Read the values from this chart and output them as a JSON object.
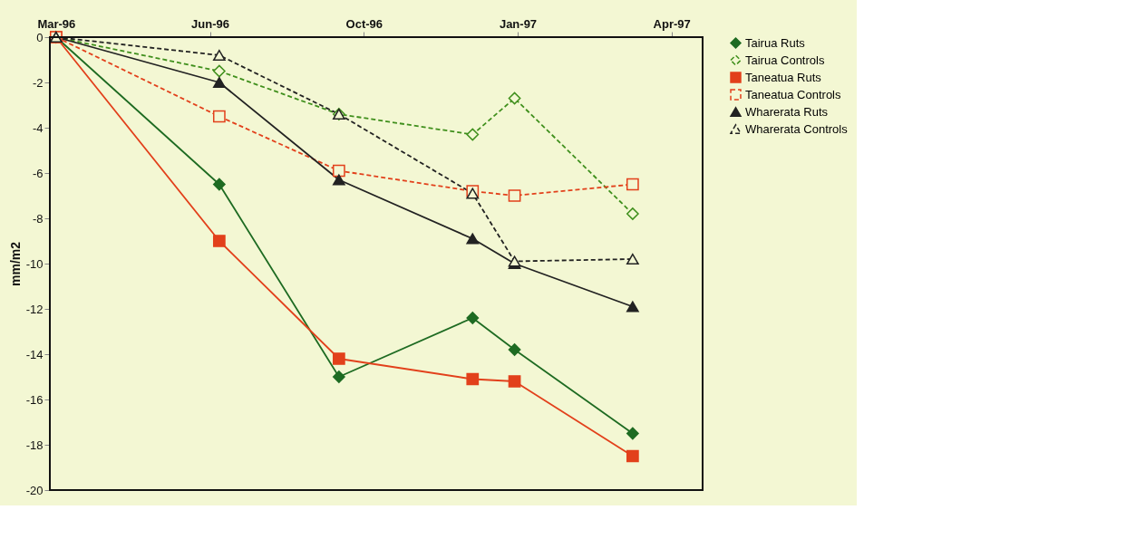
{
  "chart_data": {
    "type": "line",
    "ylabel": "mm/m2",
    "x": [
      "1996-03-20",
      "1996-07-03",
      "1996-09-18",
      "1996-12-13",
      "1997-01-09",
      "1997-03-26"
    ],
    "xlim": [
      "1996-03-16",
      "1997-05-10"
    ],
    "xticks": [
      {
        "value": "1996-03-20",
        "label": "Mar-96"
      },
      {
        "value": "1996-06-27",
        "label": "Jun-96"
      },
      {
        "value": "1996-10-04",
        "label": "Oct-96"
      },
      {
        "value": "1997-01-11",
        "label": "Jan-97"
      },
      {
        "value": "1997-04-20",
        "label": "Apr-97"
      }
    ],
    "ylim": [
      -20,
      0
    ],
    "yticks": [
      0,
      -2,
      -4,
      -6,
      -8,
      -10,
      -12,
      -14,
      -16,
      -18,
      -20
    ],
    "grid": false,
    "legend": "right",
    "series": [
      {
        "name": "Tairua Ruts",
        "color": "#1e6b22",
        "marker": "diamond",
        "line_style": "solid",
        "values": [
          0,
          -6.5,
          -15.0,
          -12.4,
          -13.8,
          -17.5
        ]
      },
      {
        "name": "Tairua Controls",
        "color": "#3f8f1c",
        "marker": "diamond",
        "line_style": "dashed",
        "values": [
          0,
          -1.5,
          -3.4,
          -4.3,
          -2.7,
          -7.8
        ]
      },
      {
        "name": "Taneatua Ruts",
        "color": "#e2401b",
        "marker": "square",
        "line_style": "solid",
        "values": [
          0,
          -9.0,
          -14.2,
          -15.1,
          -15.2,
          -18.5
        ]
      },
      {
        "name": "Taneatua Controls",
        "color": "#e2401b",
        "marker": "square",
        "line_style": "dashed",
        "values": [
          0,
          -3.5,
          -5.9,
          -6.8,
          -7.0,
          -6.5
        ]
      },
      {
        "name": "Wharerata Ruts",
        "color": "#222222",
        "marker": "triangle",
        "line_style": "solid",
        "values": [
          0,
          -2.0,
          -6.3,
          -8.9,
          -10.0,
          -11.9
        ]
      },
      {
        "name": "Wharerata Controls",
        "color": "#222222",
        "marker": "triangle",
        "line_style": "dashed",
        "values": [
          0,
          -0.8,
          -3.4,
          -6.9,
          -9.9,
          -9.8
        ]
      }
    ]
  }
}
